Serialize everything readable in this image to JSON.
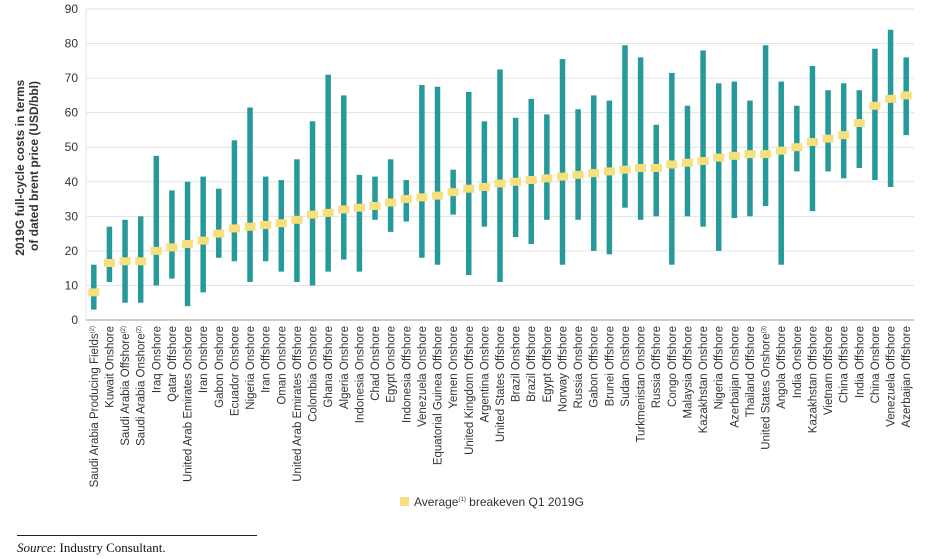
{
  "chart_data": {
    "type": "bar",
    "subtype": "floating-range-with-marker",
    "ylabel": "2019G full-cycle costs in terms of dated brent price (USD/bbl)",
    "ylim": [
      0,
      90
    ],
    "yticks": [
      0,
      10,
      20,
      30,
      40,
      50,
      60,
      70,
      80,
      90
    ],
    "grid": "horizontal",
    "legend": {
      "placement": "bottom",
      "label": "Average",
      "label_sup": "(1)",
      "label_rest": " breakeven Q1 2019G"
    },
    "colors": {
      "range": "#26999a",
      "marker": "#f6df7c",
      "grid": "#e3e3e3",
      "axis": "#9a9a9a"
    },
    "categories": [
      {
        "label": "Saudi Arabia  Producing Fields",
        "sup": "(2)",
        "min": 3,
        "max": 16,
        "avg": 8
      },
      {
        "label": "Kuwait Onshore",
        "sup": "",
        "min": 11,
        "max": 27,
        "avg": 16.5
      },
      {
        "label": "Saudi Arabia Offshore",
        "sup": "(2)",
        "min": 5,
        "max": 29,
        "avg": 17
      },
      {
        "label": "Saudi Arabia Onshore",
        "sup": "(2)",
        "min": 5,
        "max": 30,
        "avg": 17
      },
      {
        "label": "Iraq Onshore",
        "sup": "",
        "min": 10,
        "max": 47.5,
        "avg": 20
      },
      {
        "label": "Qatar Offshore",
        "sup": "",
        "min": 12,
        "max": 37.5,
        "avg": 21
      },
      {
        "label": "United Arab Emirates Onshore",
        "sup": "",
        "min": 4,
        "max": 40,
        "avg": 22
      },
      {
        "label": "Iran Onshore",
        "sup": "",
        "min": 8,
        "max": 41.5,
        "avg": 23
      },
      {
        "label": "Gabon Onshore",
        "sup": "",
        "min": 18,
        "max": 38,
        "avg": 25
      },
      {
        "label": "Ecuador Onshore",
        "sup": "",
        "min": 17,
        "max": 52,
        "avg": 26.5
      },
      {
        "label": "Nigeria Onshore",
        "sup": "",
        "min": 11,
        "max": 61.5,
        "avg": 27
      },
      {
        "label": "Iran Offshore",
        "sup": "",
        "min": 17,
        "max": 41.5,
        "avg": 27.5
      },
      {
        "label": "Oman Onshore",
        "sup": "",
        "min": 14,
        "max": 40.5,
        "avg": 28
      },
      {
        "label": "United Arab Emirates Offshore",
        "sup": "",
        "min": 11,
        "max": 46.5,
        "avg": 29
      },
      {
        "label": "Colombia Onshore",
        "sup": "",
        "min": 10,
        "max": 57.5,
        "avg": 30.5
      },
      {
        "label": "Ghana Offshore",
        "sup": "",
        "min": 14,
        "max": 71,
        "avg": 31
      },
      {
        "label": "Algeria Onshore",
        "sup": "",
        "min": 17.5,
        "max": 65,
        "avg": 32
      },
      {
        "label": "Indonesia Onshore",
        "sup": "",
        "min": 14,
        "max": 42,
        "avg": 32.5
      },
      {
        "label": "Chad Onshore",
        "sup": "",
        "min": 29,
        "max": 41.5,
        "avg": 33
      },
      {
        "label": "Egypt Onshore",
        "sup": "",
        "min": 25.5,
        "max": 46.5,
        "avg": 34
      },
      {
        "label": "Indonesia Offshore",
        "sup": "",
        "min": 28.5,
        "max": 40.5,
        "avg": 35
      },
      {
        "label": "Venezuela Onshore",
        "sup": "",
        "min": 18,
        "max": 68,
        "avg": 35.5
      },
      {
        "label": "Equatorial Guinea Offshore",
        "sup": "",
        "min": 16,
        "max": 67.5,
        "avg": 36
      },
      {
        "label": "Yemen Onshore",
        "sup": "",
        "min": 30.5,
        "max": 43.5,
        "avg": 37
      },
      {
        "label": "United Kingdom Offshore",
        "sup": "",
        "min": 13,
        "max": 66,
        "avg": 38
      },
      {
        "label": "Argentina Onshore",
        "sup": "",
        "min": 27,
        "max": 57.5,
        "avg": 38.5
      },
      {
        "label": "United States Offshore",
        "sup": "",
        "min": 11,
        "max": 72.5,
        "avg": 39.5
      },
      {
        "label": "Brazil Onshore",
        "sup": "",
        "min": 24,
        "max": 58.5,
        "avg": 40
      },
      {
        "label": "Brazil Offshore",
        "sup": "",
        "min": 22,
        "max": 64,
        "avg": 40.5
      },
      {
        "label": "Egypt Offshore",
        "sup": "",
        "min": 29,
        "max": 59.5,
        "avg": 41
      },
      {
        "label": "Norway Offshore",
        "sup": "",
        "min": 16,
        "max": 75.5,
        "avg": 41.5
      },
      {
        "label": "Russia Onshore",
        "sup": "",
        "min": 29,
        "max": 61,
        "avg": 42
      },
      {
        "label": "Gabon Offshore",
        "sup": "",
        "min": 20,
        "max": 65,
        "avg": 42.5
      },
      {
        "label": "Brunei Offshore",
        "sup": "",
        "min": 19,
        "max": 63.5,
        "avg": 43
      },
      {
        "label": "Sudan Onshore",
        "sup": "",
        "min": 32.5,
        "max": 79.5,
        "avg": 43.5
      },
      {
        "label": "Turkmenistan Onshore",
        "sup": "",
        "min": 29,
        "max": 76,
        "avg": 44
      },
      {
        "label": "Russia Offshore",
        "sup": "",
        "min": 30,
        "max": 56.5,
        "avg": 44
      },
      {
        "label": "Congo Offshore",
        "sup": "",
        "min": 16,
        "max": 71.5,
        "avg": 45
      },
      {
        "label": "Malaysia Offshore",
        "sup": "",
        "min": 30,
        "max": 62,
        "avg": 45.5
      },
      {
        "label": "Kazakhstan Onshore",
        "sup": "",
        "min": 27,
        "max": 78,
        "avg": 46
      },
      {
        "label": "Nigeria Offshore",
        "sup": "",
        "min": 20,
        "max": 68.5,
        "avg": 47
      },
      {
        "label": "Azerbaijan Onshore",
        "sup": "",
        "min": 29.5,
        "max": 69,
        "avg": 47.5
      },
      {
        "label": "Thailand Offshore",
        "sup": "",
        "min": 30,
        "max": 63.5,
        "avg": 48
      },
      {
        "label": "United States Onshore",
        "sup": "(3)",
        "min": 33,
        "max": 79.5,
        "avg": 48
      },
      {
        "label": "Angola Offshore",
        "sup": "",
        "min": 16,
        "max": 69,
        "avg": 49
      },
      {
        "label": "India Onshore",
        "sup": "",
        "min": 43,
        "max": 62,
        "avg": 50
      },
      {
        "label": "Kazakhstan Offshore",
        "sup": "",
        "min": 31.5,
        "max": 73.5,
        "avg": 51.5
      },
      {
        "label": "Vietnam Offshore",
        "sup": "",
        "min": 43,
        "max": 66.5,
        "avg": 52.5
      },
      {
        "label": "China Offshore",
        "sup": "",
        "min": 41,
        "max": 68.5,
        "avg": 53.5
      },
      {
        "label": "India Offshore",
        "sup": "",
        "min": 44,
        "max": 66.5,
        "avg": 57
      },
      {
        "label": "China Onshore",
        "sup": "",
        "min": 40.5,
        "max": 78.5,
        "avg": 62
      },
      {
        "label": "Venezuela Offshore",
        "sup": "",
        "min": 38.5,
        "max": 84,
        "avg": 64
      },
      {
        "label": "Azerbaijan Offshore",
        "sup": "",
        "min": 53.5,
        "max": 76,
        "avg": 65
      }
    ]
  },
  "source": {
    "label": "Source",
    "text": ": Industry Consultant."
  }
}
